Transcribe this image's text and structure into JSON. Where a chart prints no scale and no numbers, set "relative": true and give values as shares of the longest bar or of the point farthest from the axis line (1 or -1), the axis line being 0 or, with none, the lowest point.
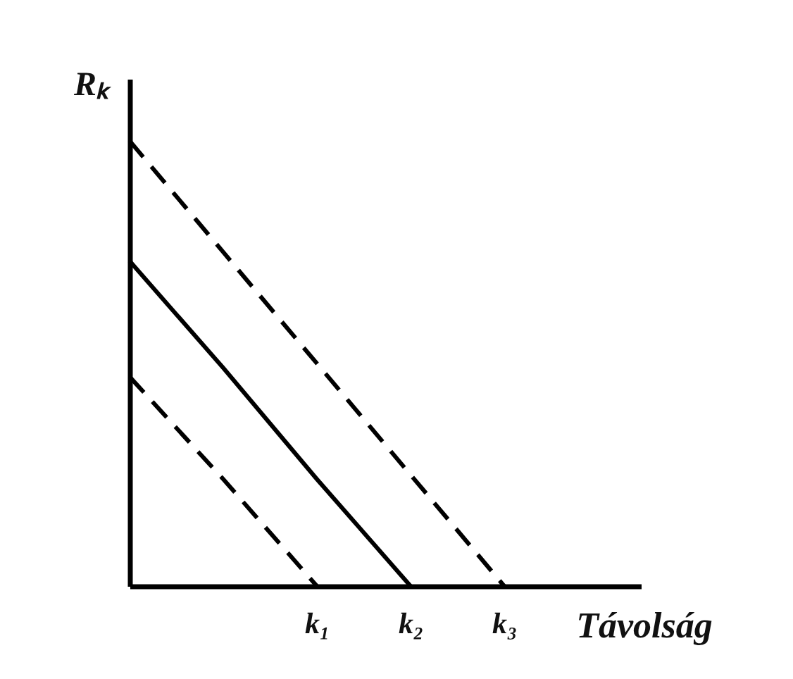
{
  "chart_data": {
    "type": "line",
    "xlabel": "Távolság",
    "ylabel": "Rₖ",
    "relative": true,
    "categories": [
      null,
      null,
      "k₁",
      "k₂",
      "k₃"
    ],
    "series": [
      {
        "color": "#000000",
        "line_style": "dashed",
        "values": [
          1,
          0.75,
          0.5,
          0.25,
          0
        ]
      },
      {
        "color": "#000000",
        "line_style": "solid",
        "values": [
          0.73,
          0.49,
          0.24,
          0,
          null
        ]
      },
      {
        "color": "#000000",
        "line_style": "dashed",
        "values": [
          0.47,
          0.24,
          0,
          null,
          null
        ]
      }
    ]
  }
}
